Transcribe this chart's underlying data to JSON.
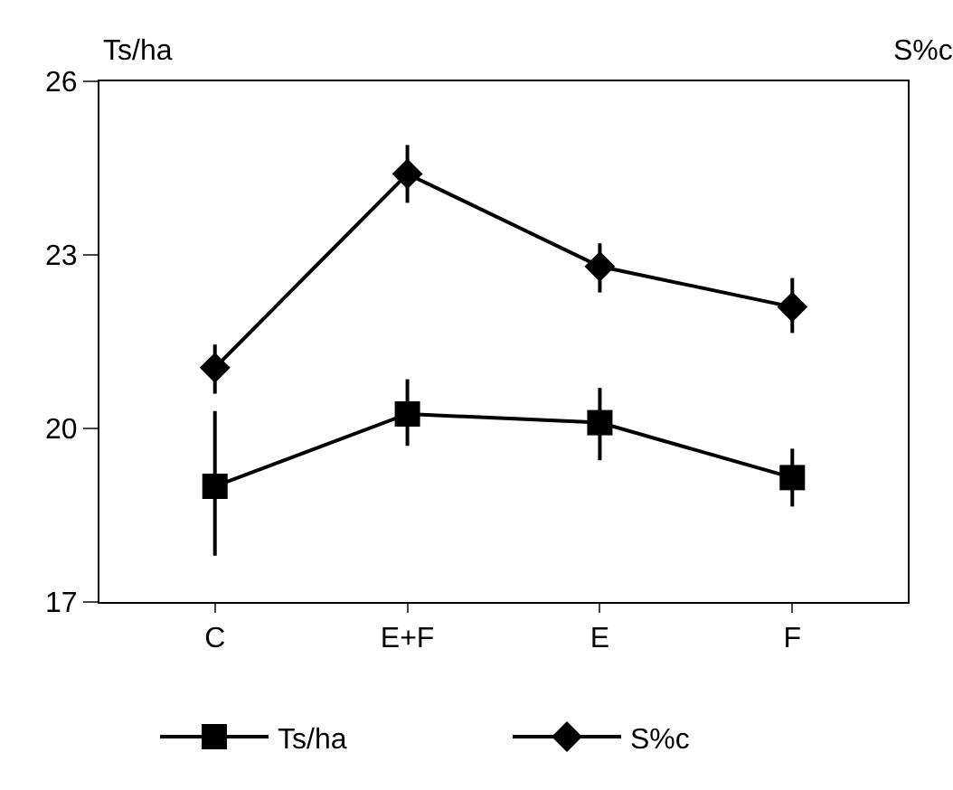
{
  "chart_data": {
    "type": "line",
    "ylabel": "Ts/ha",
    "annotations": [
      "S%c"
    ],
    "categories": [
      "C",
      "E+F",
      "E",
      "F"
    ],
    "ylim": [
      17,
      26
    ],
    "yticks": [
      17,
      20,
      23,
      26
    ],
    "legend": "bottom",
    "line_style": "solid",
    "series": [
      {
        "name": "Ts/ha",
        "color": "#000000",
        "marker": "square",
        "values": [
          19.0,
          20.25,
          20.1,
          19.15
        ],
        "errors": [
          [
            17.8,
            20.3
          ],
          [
            19.7,
            20.85
          ],
          [
            19.45,
            20.7
          ],
          [
            18.65,
            19.65
          ]
        ]
      },
      {
        "name": "S%c",
        "color": "#000000",
        "marker": "diamond",
        "values": [
          21.05,
          24.4,
          22.8,
          22.1
        ],
        "errors": [
          [
            20.6,
            21.45
          ],
          [
            23.9,
            24.9
          ],
          [
            22.35,
            23.2
          ],
          [
            21.65,
            22.6
          ]
        ]
      }
    ]
  }
}
